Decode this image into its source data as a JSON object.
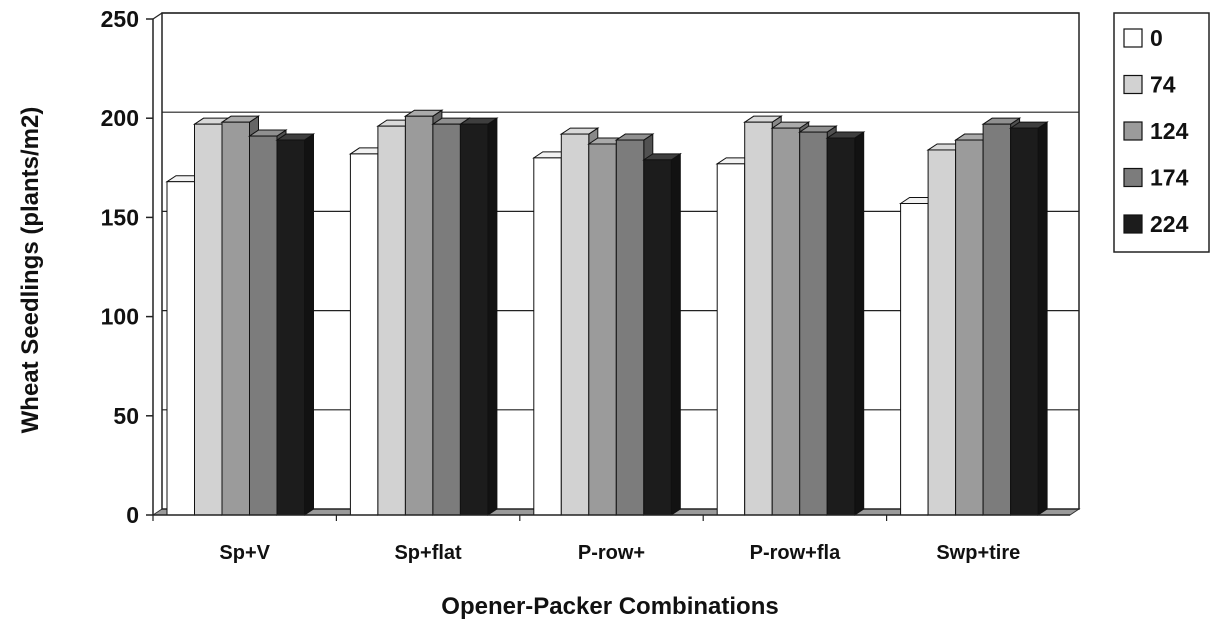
{
  "chart_data": {
    "type": "bar",
    "title": "",
    "xlabel": "Opener-Packer Combinations",
    "ylabel": "Wheat Seedlings (plants/m2)",
    "ylim": [
      0,
      250
    ],
    "yticks": [
      "0",
      "50",
      "100",
      "150",
      "200",
      "250"
    ],
    "categories": [
      "Sp+V",
      "Sp+flat",
      "P-row+",
      "P-row+fla",
      "Swp+tire"
    ],
    "series": [
      {
        "name": "0",
        "values": [
          168,
          182,
          180,
          177,
          157
        ],
        "color": "#ffffff"
      },
      {
        "name": "74",
        "values": [
          197,
          196,
          192,
          198,
          184
        ],
        "color": "#d2d2d2"
      },
      {
        "name": "124",
        "values": [
          198,
          201,
          187,
          195,
          189
        ],
        "color": "#9b9b9b"
      },
      {
        "name": "174",
        "values": [
          191,
          197,
          189,
          193,
          197
        ],
        "color": "#7c7c7c"
      },
      {
        "name": "224",
        "values": [
          189,
          197,
          179,
          190,
          195
        ],
        "color": "#1c1c1c"
      }
    ],
    "legend_position": "top-right",
    "grid": true,
    "three_d": true
  }
}
